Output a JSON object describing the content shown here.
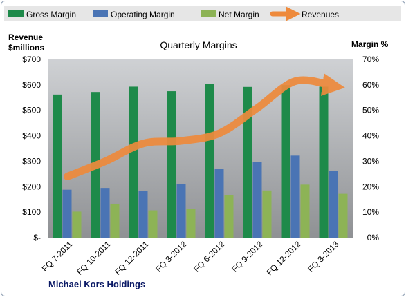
{
  "colors": {
    "gross": "#1e8a4a",
    "operating": "#4a74b4",
    "net": "#8db356",
    "revenue": "#ee8a3c",
    "plot_top": "#cfd1d4",
    "plot_bottom": "#8f9194",
    "legend_bg": "#e6e6e6"
  },
  "labels": {
    "title": "Quarterly Margins",
    "left_axis_line1": "Revenue",
    "left_axis_line2": "$millions",
    "right_axis": "Margin %",
    "footer": "Michael Kors Holdings"
  },
  "chart_data": {
    "type": "bar",
    "title": "Quarterly Margins",
    "categories": [
      "FQ 7-2011",
      "FQ 10-2011",
      "FQ 12-2011",
      "FQ 3-2012",
      "FQ 6-2012",
      "FQ 9-2012",
      "FQ 12-2012",
      "FQ 3-2013"
    ],
    "left_axis": {
      "label": "Revenue $millions",
      "ylim": [
        0,
        700
      ],
      "ticks": [
        "$-",
        "$100",
        "$200",
        "$300",
        "$400",
        "$500",
        "$600",
        "$700"
      ]
    },
    "right_axis": {
      "label": "Margin %",
      "ylim": [
        0,
        70
      ],
      "ticks": [
        "0%",
        "10%",
        "20%",
        "30%",
        "40%",
        "50%",
        "60%",
        "70%"
      ]
    },
    "series": [
      {
        "name": "Gross Margin",
        "axis": "right",
        "type": "bar",
        "values": [
          56.2,
          57.2,
          59.3,
          57.5,
          60.5,
          59.2,
          59.9,
          59.3
        ]
      },
      {
        "name": "Operating Margin",
        "axis": "right",
        "type": "bar",
        "values": [
          18.8,
          19.5,
          18.3,
          21.0,
          27.0,
          29.8,
          32.2,
          26.3
        ]
      },
      {
        "name": "Net Margin",
        "axis": "right",
        "type": "bar",
        "values": [
          10.2,
          13.3,
          10.7,
          11.3,
          16.7,
          18.5,
          20.8,
          17.2
        ]
      },
      {
        "name": "Revenues",
        "axis": "left",
        "type": "line",
        "values": [
          240,
          300,
          370,
          380,
          410,
          510,
          615,
          595
        ]
      }
    ],
    "legend": "top",
    "grid": false
  }
}
